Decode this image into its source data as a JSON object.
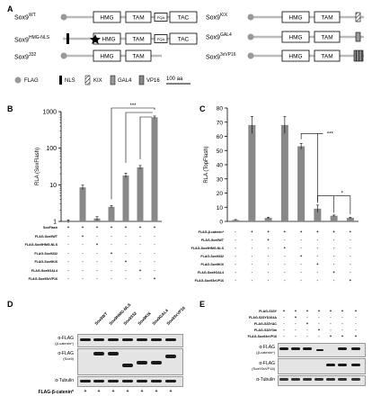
{
  "panels": {
    "a": "A",
    "b": "B",
    "c": "C",
    "d": "D",
    "e": "E"
  },
  "constructs": {
    "wt": {
      "name": "Sox9",
      "sup": "WT"
    },
    "hmgnls": {
      "name": "Sox9",
      "sup": "HMG-NLS"
    },
    "s332": {
      "name": "Sox9",
      "sup": "332"
    },
    "kix": {
      "name": "Sox9",
      "sup": "KIX"
    },
    "gal4": {
      "name": "Sox9",
      "sup": "GAL4"
    },
    "vp16": {
      "name": "Sox9",
      "sup": "3xVP16"
    }
  },
  "domains": {
    "hmg": "HMG",
    "tam": "TAM",
    "pqa": "PQA",
    "tac": "TAC"
  },
  "legend": {
    "flag": "FLAG",
    "nls": "NLS",
    "kix": "KIX",
    "gal4": "GAL4",
    "vp16": "VP16",
    "scale": "100 aa"
  },
  "panel_b": {
    "ylabel": "RLA (SoxFlash)",
    "sig": "***",
    "rows": [
      {
        "label": "SoxFlash",
        "marks": [
          "+",
          "+",
          "+",
          "+",
          "+",
          "+",
          "+"
        ]
      },
      {
        "label": "FLAG-Sox9WT",
        "marks": [
          "-",
          "+",
          "-",
          "-",
          "-",
          "-",
          "-"
        ]
      },
      {
        "label": "FLAG-Sox9HMG-NLS",
        "marks": [
          "-",
          "-",
          "+",
          "-",
          "-",
          "-",
          "-"
        ]
      },
      {
        "label": "FLAG-Sox9332",
        "marks": [
          "-",
          "-",
          "-",
          "+",
          "-",
          "-",
          "-"
        ]
      },
      {
        "label": "FLAG-Sox9KIX",
        "marks": [
          "-",
          "-",
          "-",
          "-",
          "+",
          "-",
          "-"
        ]
      },
      {
        "label": "FLAG-Sox9GAL4",
        "marks": [
          "-",
          "-",
          "-",
          "-",
          "-",
          "+",
          "-"
        ]
      },
      {
        "label": "FLAG-Sox93xVP16",
        "marks": [
          "-",
          "-",
          "-",
          "-",
          "-",
          "-",
          "+"
        ]
      }
    ]
  },
  "panel_c": {
    "ylabel": "RLA (TopFlash)",
    "sig1": "***",
    "sig2": "*",
    "rows": [
      {
        "label": "FLAG-β-catenin*",
        "marks": [
          "-",
          "+",
          "+",
          "+",
          "+",
          "+",
          "+",
          "+"
        ]
      },
      {
        "label": "FLAG-Sox9WT",
        "marks": [
          "-",
          "-",
          "+",
          "-",
          "-",
          "-",
          "-",
          "-"
        ]
      },
      {
        "label": "FLAG-Sox9HMG-NLS",
        "marks": [
          "-",
          "-",
          "-",
          "+",
          "-",
          "-",
          "-",
          "-"
        ]
      },
      {
        "label": "FLAG-Sox9332",
        "marks": [
          "-",
          "-",
          "-",
          "-",
          "+",
          "-",
          "-",
          "-"
        ]
      },
      {
        "label": "FLAG-Sox9KIX",
        "marks": [
          "-",
          "-",
          "-",
          "-",
          "-",
          "+",
          "-",
          "-"
        ]
      },
      {
        "label": "FLAG-Sox9GAL4",
        "marks": [
          "-",
          "-",
          "-",
          "-",
          "-",
          "-",
          "+",
          "-"
        ]
      },
      {
        "label": "FLAG-Sox93xVP16",
        "marks": [
          "-",
          "-",
          "-",
          "-",
          "-",
          "-",
          "-",
          "+"
        ]
      }
    ]
  },
  "panel_d": {
    "lanes": [
      "Sox9WT",
      "Sox9HMG-NLS",
      "Sox9332",
      "Sox9KIX",
      "Sox9GAL4",
      "Sox93xVP16"
    ],
    "blot1": "α-FLAG",
    "blot1b": "(β-catenin*)",
    "blot2": "α-FLAG",
    "blot2b": "(Sox9)",
    "blot3": "α-Tubulin",
    "footer": "FLAG-β-catenin*",
    "footer_marks": [
      "+",
      "+",
      "+",
      "+",
      "+",
      "+",
      "+"
    ]
  },
  "panel_e": {
    "rows": [
      {
        "label": "FLAG-S33Y",
        "marks": [
          "+",
          "+",
          "+",
          "+",
          "+",
          "+",
          "+"
        ]
      },
      {
        "label": "FLAG-S33YD164A",
        "marks": [
          "-",
          "+",
          "-",
          "-",
          "-",
          "-",
          "-"
        ]
      },
      {
        "label": "FLAG-S33YΔC",
        "marks": [
          "-",
          "-",
          "+",
          "-",
          "-",
          "-",
          "-"
        ]
      },
      {
        "label": "FLAG-S33Y3m",
        "marks": [
          "-",
          "-",
          "-",
          "+",
          "-",
          "-",
          "-"
        ]
      },
      {
        "label": "FLAG-Sox93xVP16",
        "marks": [
          "-",
          "-",
          "-",
          "-",
          "+",
          "+",
          "+"
        ]
      }
    ],
    "blot1": "α-FLAG",
    "blot1b": "(β-catenin*)",
    "blot2": "α-FLAG",
    "blot2b": "(Sox93xVP16)",
    "blot3": "α-Tubulin"
  },
  "chart_data": [
    {
      "type": "bar",
      "ylabel": "RLA (SoxFlash)",
      "yscale": "log",
      "ylim": [
        1,
        1000
      ],
      "yticks": [
        "1",
        "10",
        "100",
        "1000"
      ],
      "categories": [
        "1",
        "2",
        "3",
        "4",
        "5",
        "6",
        "7"
      ],
      "values": [
        1,
        8.5,
        1.2,
        2.5,
        18,
        30,
        700
      ]
    },
    {
      "type": "bar",
      "ylabel": "RLA (TopFlash)",
      "ylim": [
        0,
        80
      ],
      "yticks": [
        "0",
        "10",
        "20",
        "30",
        "40",
        "50",
        "60",
        "70",
        "80"
      ],
      "categories": [
        "1",
        "2",
        "3",
        "4",
        "5",
        "6",
        "7",
        "8"
      ],
      "values": [
        1,
        68,
        2.5,
        68,
        53,
        9,
        4,
        2.5
      ]
    }
  ]
}
